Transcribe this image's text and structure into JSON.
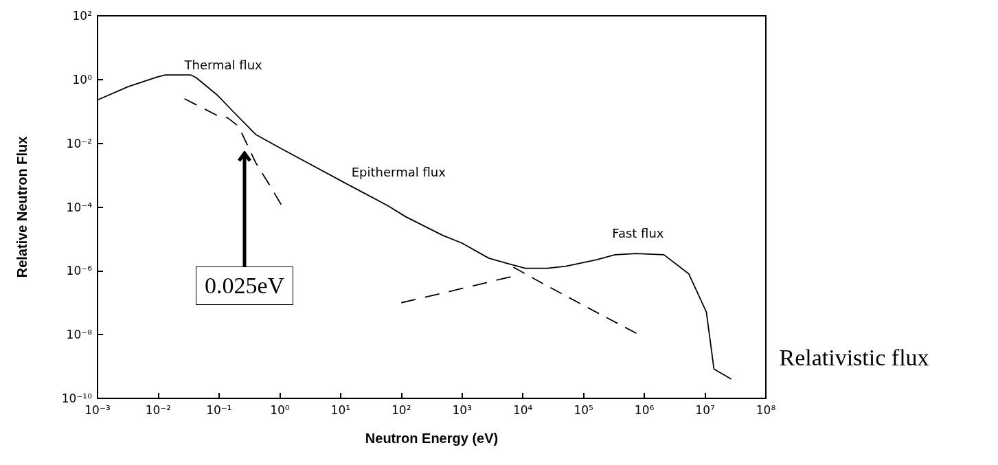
{
  "chart_data": {
    "type": "line",
    "xlabel": "Neutron Energy (eV)",
    "ylabel": "Relative Neutron Flux",
    "log": "xy",
    "grid": false,
    "marker": "none",
    "xlim": [
      0.001,
      100000000
    ],
    "ylim": [
      1e-10,
      100
    ],
    "xticks": [
      {
        "value": 0.001,
        "label": "10⁻³"
      },
      {
        "value": 0.01,
        "label": "10⁻²"
      },
      {
        "value": 0.1,
        "label": "10⁻¹"
      },
      {
        "value": 1,
        "label": "10⁰"
      },
      {
        "value": 10,
        "label": "10¹"
      },
      {
        "value": 100,
        "label": "10²"
      },
      {
        "value": 1000,
        "label": "10³"
      },
      {
        "value": 10000,
        "label": "10⁴"
      },
      {
        "value": 100000,
        "label": "10⁵"
      },
      {
        "value": 1000000,
        "label": "10⁶"
      },
      {
        "value": 10000000,
        "label": "10⁷"
      },
      {
        "value": 100000000,
        "label": "10⁸"
      }
    ],
    "yticks": [
      {
        "value": 1e-10,
        "label": "10⁻¹⁰"
      },
      {
        "value": 1e-08,
        "label": "10⁻⁸"
      },
      {
        "value": 1e-06,
        "label": "10⁻⁶"
      },
      {
        "value": 0.0001,
        "label": "10⁻⁴"
      },
      {
        "value": 0.01,
        "label": "10⁻²"
      },
      {
        "value": 1,
        "label": "10⁰"
      },
      {
        "value": 100,
        "label": "10²"
      }
    ],
    "series": [
      {
        "color": "#000000",
        "line_style": "solid",
        "x": [
          0.001,
          0.0032,
          0.0096,
          0.013,
          0.034,
          0.042,
          0.093,
          0.17,
          0.4,
          1,
          10,
          60,
          120,
          480,
          1000,
          2750,
          5600,
          11000,
          25000,
          51000,
          160000,
          330000,
          740000,
          2100000,
          5400000,
          10500000,
          14000000,
          27000000
        ],
        "values": [
          0.23,
          0.6,
          1.2,
          1.4,
          1.4,
          1.15,
          0.33,
          0.1,
          0.019,
          0.0072,
          0.00068,
          0.00011,
          4.9e-05,
          1.3e-05,
          7.4e-06,
          2.5e-06,
          1.7e-06,
          1.2e-06,
          1.2e-06,
          1.4e-06,
          2.2e-06,
          3.2e-06,
          3.5e-06,
          3.2e-06,
          8e-07,
          5.1e-08,
          8.3e-10,
          4e-10
        ]
      },
      {
        "color": "#000000",
        "line_style": "dashed",
        "x": [
          0.027,
          0.093,
          0.14,
          0.21,
          0.4,
          0.72,
          1.05
        ],
        "values": [
          0.25,
          0.075,
          0.062,
          0.034,
          0.0025,
          0.00041,
          0.00012
        ]
      },
      {
        "color": "#000000",
        "line_style": "dashed",
        "x": [
          100,
          1000,
          6300
        ],
        "values": [
          1e-07,
          2.8e-07,
          6.5e-07
        ]
      },
      {
        "color": "#000000",
        "line_style": "dashed",
        "x": [
          7000,
          23000,
          160000,
          740000
        ],
        "values": [
          1.3e-06,
          3.7e-07,
          5.1e-08,
          1.1e-08
        ]
      }
    ],
    "annotations": [
      "Thermal flux",
      "Epithermal flux",
      "Fast flux",
      "0.025eV",
      "Relativistic flux"
    ]
  }
}
